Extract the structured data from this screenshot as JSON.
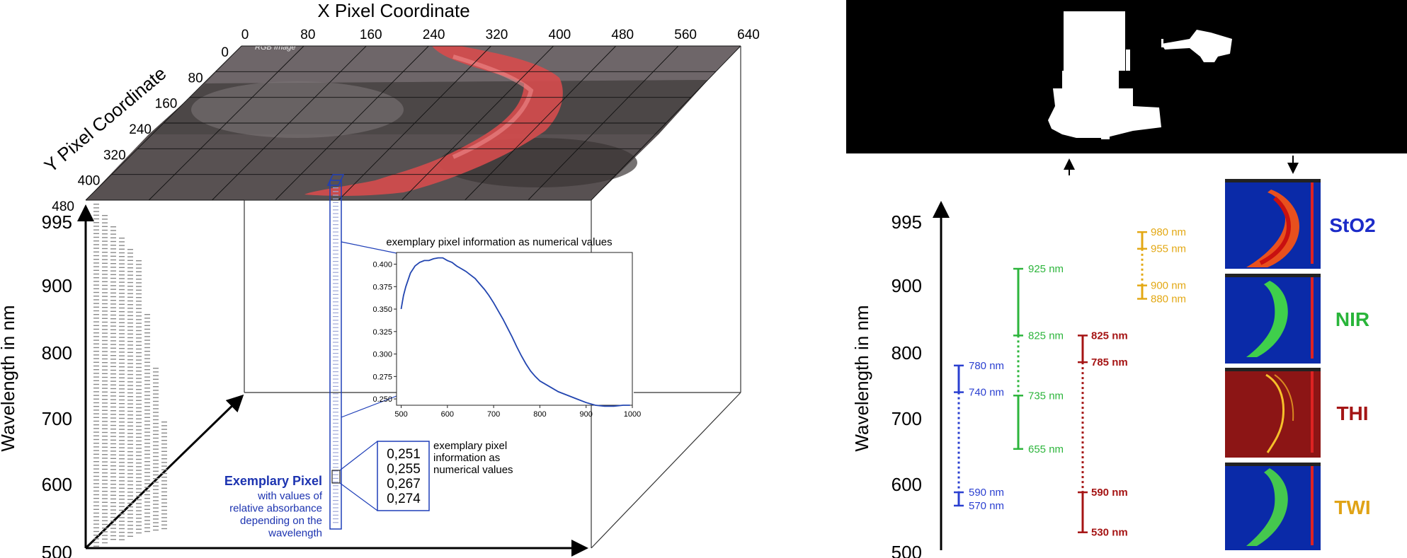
{
  "cube": {
    "x_title": "X Pixel Coordinate",
    "y_title": "Y Pixel Coordinate",
    "z_title": "Wavelength in nm",
    "x_ticks": [
      "0",
      "80",
      "160",
      "240",
      "320",
      "400",
      "480",
      "560",
      "640"
    ],
    "y_ticks": [
      "0",
      "80",
      "160",
      "240",
      "320",
      "400",
      "480"
    ],
    "z_ticks": [
      "995",
      "900",
      "800",
      "700",
      "600",
      "500"
    ],
    "rgb_label": "RGB Image",
    "pixel_title": "Exemplary Pixel",
    "pixel_desc": [
      "with values of",
      "relative absorbance",
      "depending on the",
      "wavelength"
    ],
    "sample_values": [
      "0,251",
      "0,255",
      "0,267",
      "0,274"
    ],
    "values_note": [
      "exemplary pixel",
      "information as",
      "numerical values"
    ],
    "plot_title": "exemplary pixel information as numerical values"
  },
  "chart_data": {
    "type": "line",
    "title": "exemplary pixel information as numerical values",
    "xlim": [
      490,
      1000
    ],
    "ylim": [
      0.243,
      0.413
    ],
    "xticks": [
      "500",
      "600",
      "700",
      "800",
      "900",
      "1000"
    ],
    "yticks": [
      "0.250",
      "0.275",
      "0.300",
      "0.325",
      "0.350",
      "0.375",
      "0.400"
    ],
    "x": [
      500,
      505,
      510,
      520,
      530,
      540,
      550,
      560,
      570,
      580,
      590,
      600,
      610,
      620,
      630,
      640,
      650,
      660,
      670,
      680,
      690,
      700,
      710,
      720,
      730,
      740,
      750,
      760,
      770,
      780,
      790,
      800,
      820,
      840,
      860,
      880,
      900,
      920,
      940,
      960,
      980,
      995
    ],
    "y": [
      0.35,
      0.365,
      0.375,
      0.39,
      0.398,
      0.402,
      0.404,
      0.404,
      0.406,
      0.407,
      0.407,
      0.404,
      0.402,
      0.398,
      0.395,
      0.392,
      0.388,
      0.384,
      0.378,
      0.372,
      0.365,
      0.357,
      0.348,
      0.339,
      0.329,
      0.319,
      0.308,
      0.298,
      0.289,
      0.281,
      0.275,
      0.27,
      0.264,
      0.258,
      0.254,
      0.25,
      0.246,
      0.243,
      0.242,
      0.242,
      0.243,
      0.243
    ]
  },
  "right_panel": {
    "axis_title": "Wavelength in nm",
    "axis_ticks": [
      "995",
      "900",
      "800",
      "700",
      "600",
      "500"
    ],
    "indices": [
      {
        "name": "StO2",
        "color": "#1c2bc8"
      },
      {
        "name": "NIR",
        "color": "#29b53a"
      },
      {
        "name": "THI",
        "color": "#a41515"
      },
      {
        "name": "TWI",
        "color": "#e0a316"
      }
    ],
    "bands": {
      "sto2": {
        "color": "#2a3fd0",
        "labels": [
          "780 nm",
          "740 nm",
          "590 nm",
          "570 nm"
        ],
        "values": [
          780,
          740,
          590,
          570
        ]
      },
      "nir": {
        "color": "#2db53c",
        "labels": [
          "925 nm",
          "825 nm",
          "735 nm",
          "655 nm"
        ],
        "values": [
          925,
          825,
          735,
          655
        ]
      },
      "thi": {
        "color": "#a51414",
        "labels": [
          "825 nm",
          "785 nm",
          "590 nm",
          "530 nm"
        ],
        "values": [
          825,
          785,
          590,
          530
        ]
      },
      "twi": {
        "color": "#e3a814",
        "labels": [
          "980 nm",
          "955 nm",
          "900 nm",
          "880 nm"
        ],
        "values": [
          980,
          955,
          900,
          880
        ]
      }
    }
  }
}
